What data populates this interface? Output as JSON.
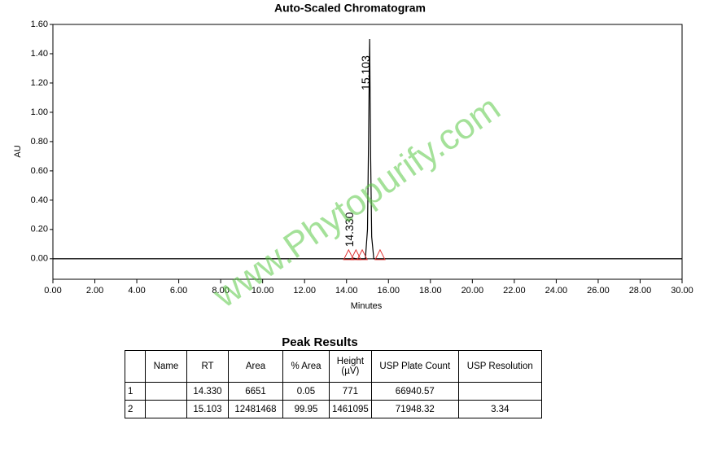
{
  "chart_data": {
    "type": "line",
    "title": "Auto-Scaled Chromatogram",
    "x_label": "Minutes",
    "y_label": "AU",
    "xlim": [
      0,
      30
    ],
    "ylim": [
      -0.14,
      1.6
    ],
    "xticks": [
      {
        "value": 0,
        "label": "0.00"
      },
      {
        "value": 2,
        "label": "2.00"
      },
      {
        "value": 4,
        "label": "4.00"
      },
      {
        "value": 6,
        "label": "6.00"
      },
      {
        "value": 8,
        "label": "8.00"
      },
      {
        "value": 10,
        "label": "10.00"
      },
      {
        "value": 12,
        "label": "12.00"
      },
      {
        "value": 14,
        "label": "14.00"
      },
      {
        "value": 16,
        "label": "16.00"
      },
      {
        "value": 18,
        "label": "18.00"
      },
      {
        "value": 20,
        "label": "20.00"
      },
      {
        "value": 22,
        "label": "22.00"
      },
      {
        "value": 24,
        "label": "24.00"
      },
      {
        "value": 26,
        "label": "26.00"
      },
      {
        "value": 28,
        "label": "28.00"
      },
      {
        "value": 30,
        "label": "30.00"
      }
    ],
    "yticks": [
      {
        "value": 0,
        "label": "0.00"
      },
      {
        "value": 0.2,
        "label": "0.20"
      },
      {
        "value": 0.4,
        "label": "0.40"
      },
      {
        "value": 0.6,
        "label": "0.60"
      },
      {
        "value": 0.8,
        "label": "0.80"
      },
      {
        "value": 1,
        "label": "1.00"
      },
      {
        "value": 1.2,
        "label": "1.20"
      },
      {
        "value": 1.4,
        "label": "1.40"
      },
      {
        "value": 1.6,
        "label": "1.60"
      }
    ],
    "series": [
      {
        "color": "#000000",
        "x": [
          0,
          14.2,
          14.33,
          14.45,
          14.9,
          15.0,
          15.05,
          15.103,
          15.15,
          15.2,
          15.3,
          30
        ],
        "values": [
          0,
          0,
          0.004,
          0,
          0,
          0.2,
          0.8,
          1.5,
          0.7,
          0.15,
          0,
          0
        ]
      }
    ],
    "markers": {
      "color": "#e03030",
      "x": [
        14.1,
        14.45,
        14.75,
        15.6
      ],
      "values": [
        0,
        0,
        0,
        0
      ]
    },
    "annotations": [
      {
        "text": "14.330",
        "x": 14.33,
        "y": 0.08
      },
      {
        "text": "15.103",
        "x": 15.103,
        "y": 1.15
      }
    ]
  },
  "watermark": "www.Phytopurify.com",
  "table": {
    "title": "Peak Results",
    "headers": [
      null,
      "Name",
      "RT",
      "Area",
      "% Area",
      "Height (µV)",
      "USP Plate Count",
      "USP Resolution"
    ],
    "rows": [
      [
        "1",
        null,
        "14.330",
        "6651",
        "0.05",
        "771",
        "66940.57",
        null
      ],
      [
        "2",
        null,
        "15.103",
        "12481468",
        "99.95",
        "1461095",
        "71948.32",
        "3.34"
      ]
    ]
  }
}
